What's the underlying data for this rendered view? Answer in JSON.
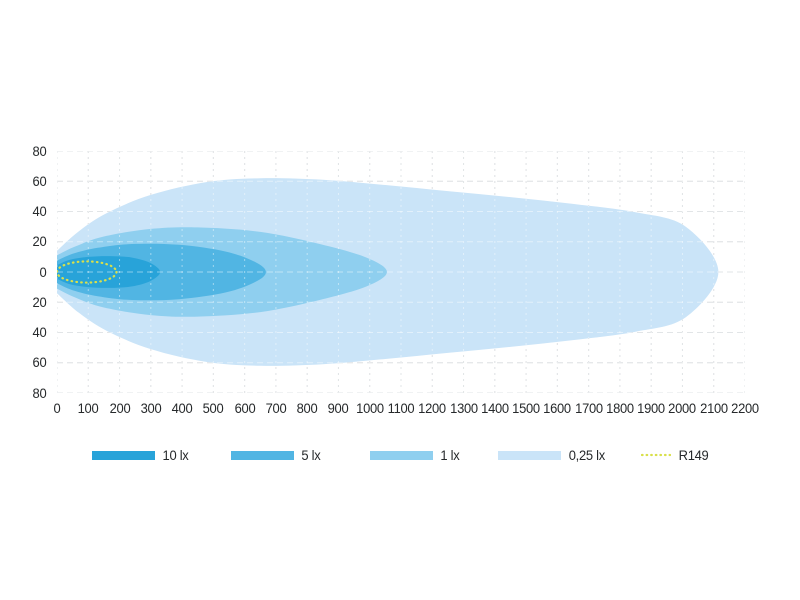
{
  "chart_data": {
    "type": "area",
    "description": "Isolux light beam pattern with nested illuminance contours",
    "xlim": [
      0,
      2200
    ],
    "ylim": [
      -80,
      80
    ],
    "grid": true,
    "x_ticks": [
      0,
      100,
      200,
      300,
      400,
      500,
      600,
      700,
      800,
      900,
      1000,
      1100,
      1200,
      1300,
      1400,
      1500,
      1600,
      1700,
      1800,
      1900,
      2000,
      2100,
      2200
    ],
    "y_ticks": [
      80,
      60,
      40,
      20,
      0,
      20,
      40,
      60,
      80
    ],
    "series": [
      {
        "name": "0,25 lx",
        "color": "#cae4f8",
        "symmetric": true,
        "profile": [
          [
            0,
            14
          ],
          [
            70,
            27
          ],
          [
            160,
            39
          ],
          [
            300,
            51
          ],
          [
            480,
            59.5
          ],
          [
            650,
            62
          ],
          [
            850,
            61
          ],
          [
            1050,
            57.5
          ],
          [
            1250,
            53.5
          ],
          [
            1450,
            49.5
          ],
          [
            1650,
            45
          ],
          [
            1850,
            39.5
          ],
          [
            2010,
            30
          ],
          [
            2115,
            0
          ]
        ]
      },
      {
        "name": "1 lx",
        "color": "#8fcfef",
        "symmetric": true,
        "profile": [
          [
            0,
            11
          ],
          [
            60,
            17
          ],
          [
            150,
            23.5
          ],
          [
            300,
            28.5
          ],
          [
            450,
            29.5
          ],
          [
            650,
            26.5
          ],
          [
            840,
            18.5
          ],
          [
            990,
            9.5
          ],
          [
            1055,
            0
          ]
        ]
      },
      {
        "name": "5 lx",
        "color": "#51b5e3",
        "symmetric": true,
        "profile": [
          [
            0,
            7.5
          ],
          [
            50,
            12
          ],
          [
            130,
            16
          ],
          [
            240,
            18.5
          ],
          [
            390,
            18
          ],
          [
            540,
            13.5
          ],
          [
            635,
            6.5
          ],
          [
            668,
            0
          ]
        ]
      },
      {
        "name": "10 lx",
        "color": "#28a3d9",
        "symmetric": true,
        "profile": [
          [
            0,
            4.5
          ],
          [
            40,
            8
          ],
          [
            100,
            10
          ],
          [
            170,
            10.5
          ],
          [
            240,
            9.5
          ],
          [
            298,
            6
          ],
          [
            330,
            0
          ]
        ]
      }
    ],
    "r149": {
      "label": "R149",
      "color": "#d9e04b",
      "cx": 95,
      "cy": 0,
      "rx": 95,
      "ry": 7,
      "style": "dotted"
    },
    "legend": [
      {
        "label": "10 lx",
        "swatch": "#28a3d9",
        "kind": "fill"
      },
      {
        "label": "5 lx",
        "swatch": "#51b5e3",
        "kind": "fill"
      },
      {
        "label": "1 lx",
        "swatch": "#8fcfef",
        "kind": "fill"
      },
      {
        "label": "0,25 lx",
        "swatch": "#cae4f8",
        "kind": "fill"
      },
      {
        "label": "R149",
        "swatch": "#d9e04b",
        "kind": "dotted-line"
      }
    ],
    "legend_position": "bottom"
  },
  "colors": {
    "background": "#ffffff",
    "grid": "#cbd0d3",
    "grid_over_fill": "rgba(255,255,255,0.45)",
    "tick_text": "#26292b"
  }
}
